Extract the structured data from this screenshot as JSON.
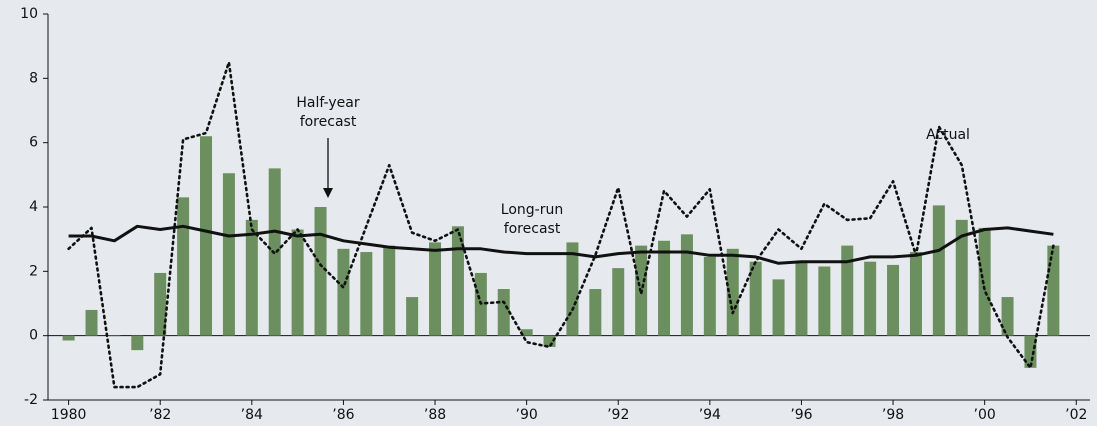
{
  "chart_data": {
    "type": "bar-line",
    "xlim": [
      1979.55,
      2002.3
    ],
    "ylim": [
      -2,
      10
    ],
    "yticks": [
      -2,
      0,
      2,
      4,
      6,
      8,
      10
    ],
    "xticks": [
      1980,
      {
        "value": 1982,
        "label": "’82"
      },
      {
        "value": 1984,
        "label": "’84"
      },
      {
        "value": 1986,
        "label": "’86"
      },
      {
        "value": 1988,
        "label": "’88"
      },
      {
        "value": 1990,
        "label": "’90"
      },
      {
        "value": 1992,
        "label": "’92"
      },
      {
        "value": 1994,
        "label": "’94"
      },
      {
        "value": 1996,
        "label": "’96"
      },
      {
        "value": 1998,
        "label": "’98"
      },
      {
        "value": 2000,
        "label": "’00"
      },
      {
        "value": 2002,
        "label": "’02"
      }
    ],
    "x": [
      1980,
      1980.5,
      1981,
      1981.5,
      1982,
      1982.5,
      1983,
      1983.5,
      1984,
      1984.5,
      1985,
      1985.5,
      1986,
      1986.5,
      1987,
      1987.5,
      1988,
      1988.5,
      1989,
      1989.5,
      1990,
      1990.5,
      1991,
      1991.5,
      1992,
      1992.5,
      1993,
      1993.5,
      1994,
      1994.5,
      1995,
      1995.5,
      1996,
      1996.5,
      1997,
      1997.5,
      1998,
      1998.5,
      1999,
      1999.5,
      2000,
      2000.5,
      2001,
      2001.5
    ],
    "series": [
      {
        "type": "bar",
        "color": "#6b8f5e",
        "values": [
          -0.15,
          0.8,
          0,
          -0.45,
          1.95,
          4.3,
          6.2,
          5.05,
          3.6,
          5.2,
          3.3,
          4.0,
          2.7,
          2.6,
          2.8,
          1.2,
          2.9,
          3.4,
          1.95,
          1.45,
          0.2,
          -0.35,
          2.9,
          1.45,
          2.1,
          2.8,
          2.95,
          3.15,
          2.45,
          2.7,
          2.3,
          1.75,
          2.3,
          2.15,
          2.8,
          2.3,
          2.2,
          2.6,
          4.05,
          3.6,
          3.35,
          1.2,
          -1.0,
          2.8
        ]
      },
      {
        "type": "line",
        "color": "#111111",
        "dash": "solid",
        "values": [
          3.1,
          3.1,
          2.95,
          3.4,
          3.3,
          3.4,
          3.25,
          3.1,
          3.15,
          3.25,
          3.1,
          3.15,
          2.95,
          2.85,
          2.75,
          2.7,
          2.65,
          2.7,
          2.7,
          2.6,
          2.55,
          2.55,
          2.55,
          2.45,
          2.55,
          2.6,
          2.6,
          2.6,
          2.5,
          2.5,
          2.45,
          2.25,
          2.3,
          2.3,
          2.3,
          2.45,
          2.45,
          2.5,
          2.65,
          3.1,
          3.3,
          3.35,
          3.25,
          3.15
        ]
      },
      {
        "type": "line",
        "color": "#111111",
        "dash": "dotted",
        "values": [
          2.7,
          3.35,
          -1.6,
          -1.6,
          -1.2,
          6.1,
          6.3,
          8.5,
          3.3,
          2.55,
          3.3,
          2.2,
          1.5,
          3.4,
          5.3,
          3.2,
          2.95,
          3.3,
          1.0,
          1.05,
          -0.2,
          -0.35,
          0.8,
          2.5,
          4.6,
          1.3,
          4.5,
          3.7,
          4.55,
          0.7,
          2.3,
          3.3,
          2.7,
          4.1,
          3.6,
          3.65,
          4.8,
          2.5,
          6.5,
          5.3,
          1.4,
          -0.05,
          -1.0,
          2.8
        ]
      }
    ],
    "annotations": [
      {
        "lines": [
          "Half-year",
          "forecast"
        ]
      },
      {
        "lines": [
          "Long-run",
          "forecast"
        ]
      },
      {
        "lines": [
          "Actual"
        ]
      }
    ]
  }
}
